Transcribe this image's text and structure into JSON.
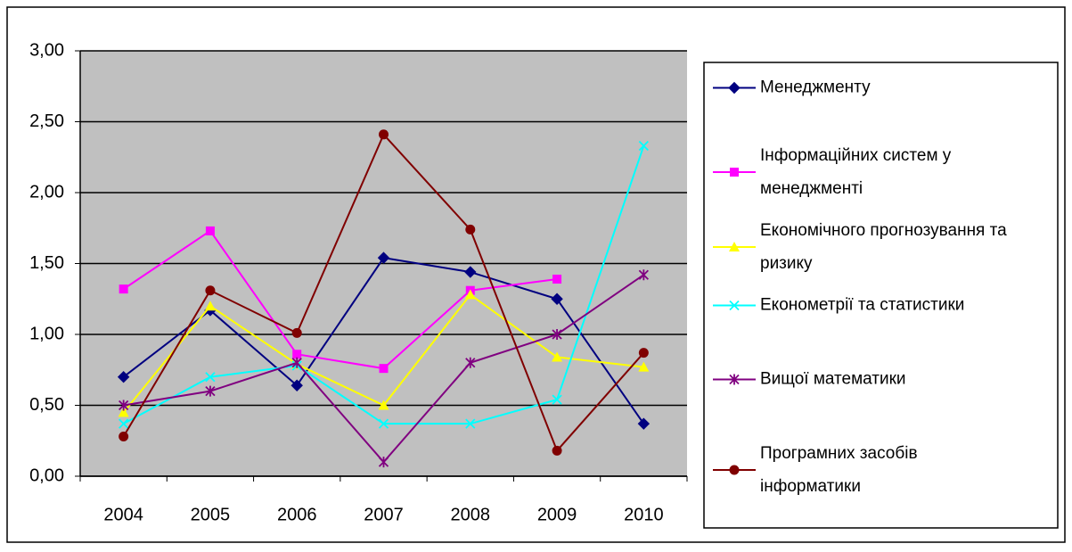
{
  "chart_data": {
    "type": "line",
    "categories": [
      "2004",
      "2005",
      "2006",
      "2007",
      "2008",
      "2009",
      "2010"
    ],
    "ylim": [
      0,
      3
    ],
    "yticks": [
      {
        "value": 0,
        "label": "0,00"
      },
      {
        "value": 0.5,
        "label": "0,50"
      },
      {
        "value": 1,
        "label": "1,00"
      },
      {
        "value": 1.5,
        "label": "1,50"
      },
      {
        "value": 2,
        "label": "2,00"
      },
      {
        "value": 2.5,
        "label": "2,50"
      },
      {
        "value": 3,
        "label": "3,00"
      }
    ],
    "grid": true,
    "legend": "right",
    "series": [
      {
        "name": "Менеджменту",
        "color": "#000080",
        "marker": "diamond",
        "values": [
          0.7,
          1.17,
          0.64,
          1.54,
          1.44,
          1.25,
          0.37
        ]
      },
      {
        "name": "Інформаційних систем у менеджменті",
        "color": "#ff00ff",
        "marker": "square",
        "values": [
          1.32,
          1.73,
          0.86,
          0.76,
          1.31,
          1.39,
          null
        ]
      },
      {
        "name": "Економічного прогнозування та ризику",
        "color": "#ffff00",
        "marker": "triangle",
        "values": [
          0.45,
          1.2,
          0.79,
          0.5,
          1.28,
          0.84,
          0.77
        ]
      },
      {
        "name": "Економетрії та статистики",
        "color": "#00ffff",
        "marker": "x",
        "values": [
          0.37,
          0.7,
          0.78,
          0.37,
          0.37,
          0.54,
          2.33
        ]
      },
      {
        "name": "Вищої математики",
        "color": "#800080",
        "marker": "star",
        "values": [
          0.5,
          0.6,
          0.8,
          0.1,
          0.8,
          1.0,
          1.42
        ]
      },
      {
        "name": "Програмних засобів інформатики",
        "color": "#800000",
        "marker": "circle",
        "values": [
          0.28,
          1.31,
          1.01,
          2.41,
          1.74,
          0.18,
          0.87
        ]
      }
    ]
  }
}
